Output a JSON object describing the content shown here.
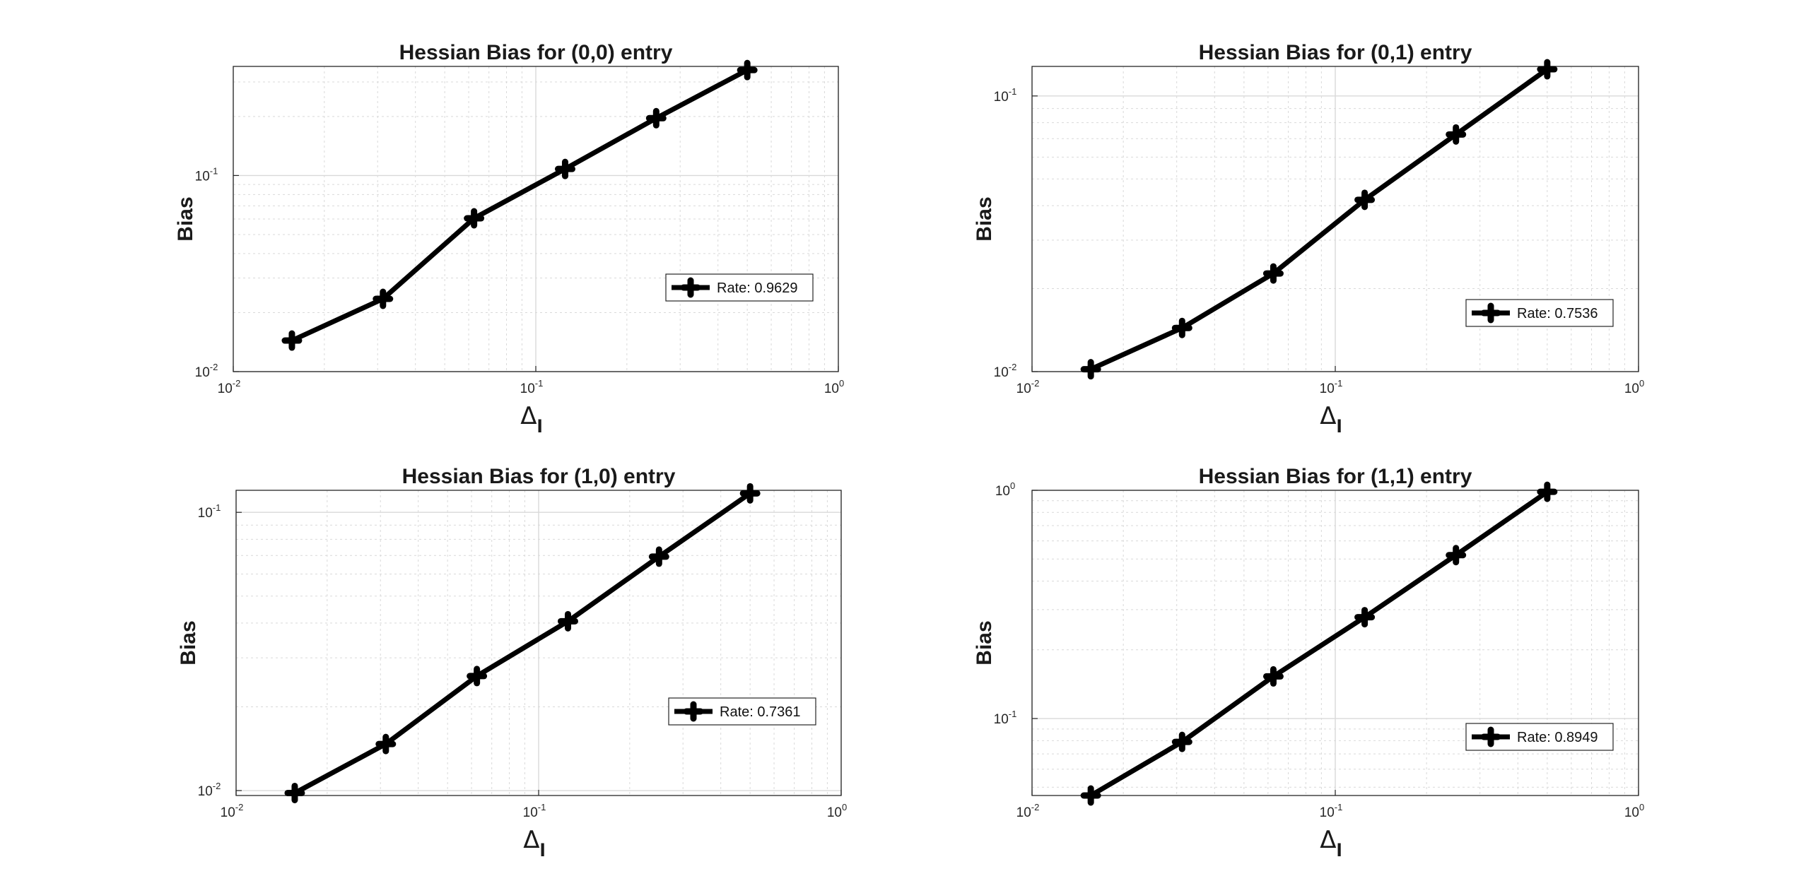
{
  "figure": {
    "background": "#ffffff",
    "line_color": "#000000",
    "grid_color": "#d9d9d9"
  },
  "chart_data": [
    {
      "type": "line",
      "title": "Hessian Bias for (0,0) entry",
      "xlabel": "Δ",
      "xlabel_sub": "l",
      "ylabel": "Bias",
      "xscale": "log",
      "yscale": "log",
      "xlim": [
        0.01,
        1
      ],
      "ylim": [
        0.01,
        0.36
      ],
      "xticks": [
        {
          "base": "10",
          "exp": "-2"
        },
        {
          "base": "10",
          "exp": "-1"
        },
        {
          "base": "10",
          "exp": "0"
        }
      ],
      "yticks": [
        {
          "value": 0.01,
          "base": "10",
          "exp": "-2"
        },
        {
          "value": 0.1,
          "base": "10",
          "exp": "-1"
        }
      ],
      "grid": true,
      "x": [
        0.015625,
        0.03125,
        0.0625,
        0.125,
        0.25,
        0.5
      ],
      "series": [
        {
          "name": "Rate: 0.9629",
          "values": [
            0.0144,
            0.0235,
            0.0605,
            0.108,
            0.196,
            0.345
          ]
        }
      ],
      "legend": {
        "position": "lower-right",
        "label": "Rate: 0.9629"
      }
    },
    {
      "type": "line",
      "title": "Hessian Bias for (0,1) entry",
      "xlabel": "Δ",
      "xlabel_sub": "l",
      "ylabel": "Bias",
      "xscale": "log",
      "yscale": "log",
      "xlim": [
        0.01,
        1
      ],
      "ylim": [
        0.01,
        0.128
      ],
      "xticks": [
        {
          "base": "10",
          "exp": "-2"
        },
        {
          "base": "10",
          "exp": "-1"
        },
        {
          "base": "10",
          "exp": "0"
        }
      ],
      "yticks": [
        {
          "value": 0.01,
          "base": "10",
          "exp": "-2"
        },
        {
          "value": 0.1,
          "base": "10",
          "exp": "-1"
        }
      ],
      "grid": true,
      "x": [
        0.015625,
        0.03125,
        0.0625,
        0.125,
        0.25,
        0.5
      ],
      "series": [
        {
          "name": "Rate: 0.7536",
          "values": [
            0.0102,
            0.0144,
            0.0227,
            0.042,
            0.0725,
            0.125
          ]
        }
      ],
      "legend": {
        "position": "lower-right",
        "label": "Rate: 0.7536"
      }
    },
    {
      "type": "line",
      "title": "Hessian Bias for (1,0) entry",
      "xlabel": "Δ",
      "xlabel_sub": "l",
      "ylabel": "Bias",
      "xscale": "log",
      "yscale": "log",
      "xlim": [
        0.01,
        1
      ],
      "ylim": [
        0.0096,
        0.12
      ],
      "xticks": [
        {
          "base": "10",
          "exp": "-2"
        },
        {
          "base": "10",
          "exp": "-1"
        },
        {
          "base": "10",
          "exp": "0"
        }
      ],
      "yticks": [
        {
          "value": 0.01,
          "base": "10",
          "exp": "-2"
        },
        {
          "value": 0.1,
          "base": "10",
          "exp": "-1"
        }
      ],
      "grid": true,
      "x": [
        0.015625,
        0.03125,
        0.0625,
        0.125,
        0.25,
        0.5
      ],
      "series": [
        {
          "name": "Rate: 0.7361",
          "values": [
            0.0098,
            0.0147,
            0.0258,
            0.0406,
            0.0693,
            0.117
          ]
        }
      ],
      "legend": {
        "position": "lower-right",
        "label": "Rate: 0.7361"
      }
    },
    {
      "type": "line",
      "title": "Hessian Bias for (1,1) entry",
      "xlabel": "Δ",
      "xlabel_sub": "l",
      "ylabel": "Bias",
      "xscale": "log",
      "yscale": "log",
      "xlim": [
        0.01,
        1
      ],
      "ylim": [
        0.046,
        1.0
      ],
      "xticks": [
        {
          "base": "10",
          "exp": "-2"
        },
        {
          "base": "10",
          "exp": "-1"
        },
        {
          "base": "10",
          "exp": "0"
        }
      ],
      "yticks": [
        {
          "value": 0.1,
          "base": "10",
          "exp": "-1"
        },
        {
          "value": 1.0,
          "base": "10",
          "exp": "0"
        }
      ],
      "grid": true,
      "x": [
        0.015625,
        0.03125,
        0.0625,
        0.125,
        0.25,
        0.5
      ],
      "series": [
        {
          "name": "Rate: 0.8949",
          "values": [
            0.046,
            0.079,
            0.153,
            0.278,
            0.52,
            0.985
          ]
        }
      ],
      "legend": {
        "position": "lower-right",
        "label": "Rate: 0.8949"
      }
    }
  ]
}
